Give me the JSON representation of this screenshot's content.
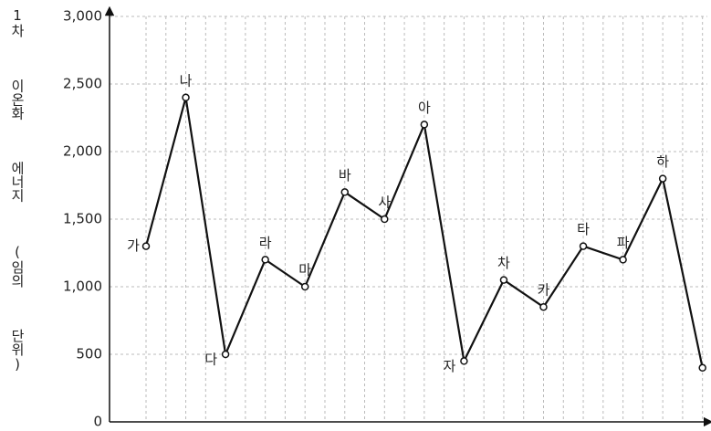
{
  "chart_data": {
    "type": "line",
    "y_label": "1차 이온화 에너지 (임의 단위)",
    "categories": [
      "가",
      "나",
      "다",
      "라",
      "마",
      "바",
      "사",
      "아",
      "자",
      "차",
      "카",
      "타",
      "파",
      "하",
      null
    ],
    "values": [
      1300,
      2400,
      500,
      1200,
      1000,
      1700,
      1500,
      2200,
      450,
      1050,
      850,
      1300,
      1200,
      1800,
      400
    ],
    "color": "#111111",
    "ylim": [
      0,
      3000
    ],
    "yticks": [
      0,
      500,
      {
        "value": 1000,
        "label": "1,000"
      },
      {
        "value": 1500,
        "label": "1,500"
      },
      {
        "value": 2000,
        "label": "2,000"
      },
      {
        "value": 2500,
        "label": "2,500"
      },
      {
        "value": 3000,
        "label": "3,000"
      }
    ],
    "grid": true
  }
}
